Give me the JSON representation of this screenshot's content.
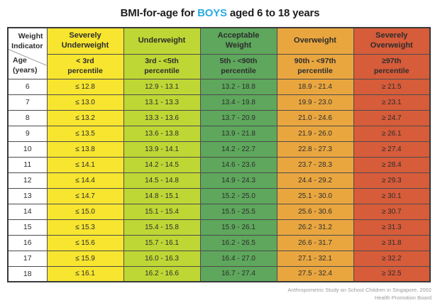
{
  "title": {
    "text_before": "BMI-for-age for ",
    "highlight": "BOYS",
    "text_after": " aged 6 to 18 years"
  },
  "colors": {
    "highlight_blue": "#29abe2",
    "severely_underweight_yellow": "#F7E52F",
    "underweight_yellowgreen": "#BFD734",
    "acceptable_green": "#5EA75C",
    "overweight_orange": "#E9A63F",
    "severely_overweight_red": "#D75C3A",
    "border_dark": "#4c4c4c",
    "footer_gray": "#9a9a9a"
  },
  "table": {
    "corner_top": "Weight\nIndicator",
    "corner_bottom": "Age\n(years)",
    "categories": [
      {
        "label": "Severely\nUnderweight",
        "percentile": "< 3rd\npercentile",
        "bg": "#F7E52F"
      },
      {
        "label": "Underweight",
        "percentile": "3rd - <5th\npercentile",
        "bg": "#BFD734"
      },
      {
        "label": "Acceptable\nWeight",
        "percentile": "5th - <90th\npercentile",
        "bg": "#5EA75C"
      },
      {
        "label": "Overweight",
        "percentile": "90th - <97th\npercentile",
        "bg": "#E9A63F"
      },
      {
        "label": "Severely\nOverweight",
        "percentile": "≥97th\npercentile",
        "bg": "#D75C3A"
      }
    ]
  },
  "chart_data": {
    "type": "table",
    "title": "BMI-for-age for BOYS aged 6 to 18 years",
    "columns": [
      "Age (years)",
      "Severely Underweight (< 3rd percentile)",
      "Underweight (3rd - <5th percentile)",
      "Acceptable Weight (5th - <90th percentile)",
      "Overweight (90th - <97th percentile)",
      "Severely Overweight (≥97th percentile)"
    ],
    "rows": [
      [
        "6",
        "≤ 12.8",
        "12.9 - 13.1",
        "13.2 - 18.8",
        "18.9 - 21.4",
        "≥ 21.5"
      ],
      [
        "7",
        "≤ 13.0",
        "13.1 - 13.3",
        "13.4 - 19.8",
        "19.9 - 23.0",
        "≥ 23.1"
      ],
      [
        "8",
        "≤ 13.2",
        "13.3 - 13.6",
        "13.7 - 20.9",
        "21.0 - 24.6",
        "≥ 24.7"
      ],
      [
        "9",
        "≤ 13.5",
        "13.6 - 13.8",
        "13.9 - 21.8",
        "21.9 - 26.0",
        "≥ 26.1"
      ],
      [
        "10",
        "≤ 13.8",
        "13.9 - 14.1",
        "14.2 - 22.7",
        "22.8 - 27.3",
        "≥ 27.4"
      ],
      [
        "11",
        "≤ 14.1",
        "14.2 - 14.5",
        "14.6 - 23.6",
        "23.7 - 28.3",
        "≥ 28.4"
      ],
      [
        "12",
        "≤ 14.4",
        "14.5 - 14.8",
        "14.9 - 24.3",
        "24.4 - 29.2",
        "≥ 29.3"
      ],
      [
        "13",
        "≤ 14.7",
        "14.8 - 15.1",
        "15.2 - 25.0",
        "25.1 - 30.0",
        "≥ 30.1"
      ],
      [
        "14",
        "≤ 15.0",
        "15.1 - 15.4",
        "15.5 - 25.5",
        "25.6 - 30.6",
        "≥ 30.7"
      ],
      [
        "15",
        "≤ 15.3",
        "15.4 - 15.8",
        "15.9 - 26.1",
        "26.2 - 31.2",
        "≥ 31.3"
      ],
      [
        "16",
        "≤ 15.6",
        "15.7 - 16.1",
        "16.2 - 26.5",
        "26.6 - 31.7",
        "≥ 31.8"
      ],
      [
        "17",
        "≤ 15.9",
        "16.0 - 16.3",
        "16.4 - 27.0",
        "27.1 - 32.1",
        "≥ 32.2"
      ],
      [
        "18",
        "≤ 16.1",
        "16.2 - 16.6",
        "16.7 - 27.4",
        "27.5 - 32.4",
        "≥ 32.5"
      ]
    ]
  },
  "footer": {
    "line1": "Anthropometric Study on School Children in Singapore, 2002",
    "line2": "Health Promotion Board"
  }
}
